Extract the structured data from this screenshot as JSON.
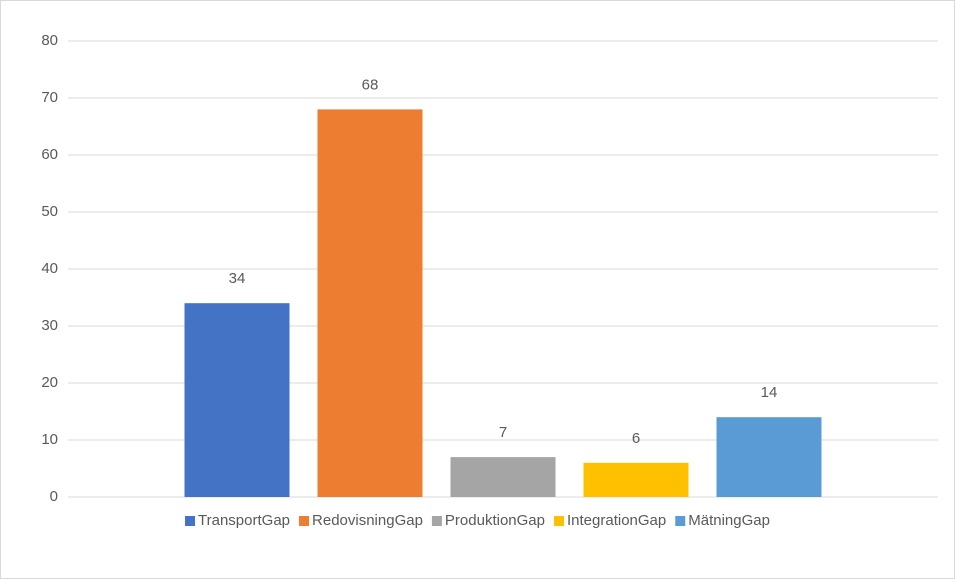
{
  "chart_data": {
    "type": "bar",
    "categories": [
      null
    ],
    "series": [
      {
        "name": "TransportGap",
        "color": "#4472c4",
        "values": [
          34
        ]
      },
      {
        "name": "RedovisningGap",
        "color": "#ed7d31",
        "values": [
          68
        ]
      },
      {
        "name": "ProduktionGap",
        "color": "#a5a5a5",
        "values": [
          7
        ]
      },
      {
        "name": "IntegrationGap",
        "color": "#ffc000",
        "values": [
          6
        ]
      },
      {
        "name": "MätningGap",
        "color": "#5b9bd5",
        "values": [
          14
        ]
      }
    ],
    "ylim": [
      0,
      80
    ],
    "yticks": [
      0,
      10,
      20,
      30,
      40,
      50,
      60,
      70,
      80
    ],
    "grid": true,
    "legend": "bottom",
    "data_labels": true
  }
}
